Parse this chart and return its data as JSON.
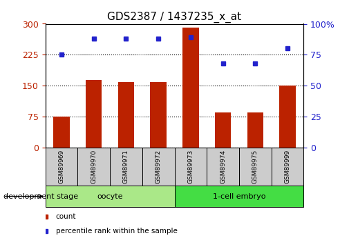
{
  "title": "GDS2387 / 1437235_x_at",
  "samples": [
    "GSM89969",
    "GSM89970",
    "GSM89971",
    "GSM89972",
    "GSM89973",
    "GSM89974",
    "GSM89975",
    "GSM89999"
  ],
  "counts": [
    75,
    163,
    158,
    158,
    290,
    85,
    85,
    150
  ],
  "percentiles": [
    75,
    88,
    88,
    88,
    89,
    68,
    68,
    80
  ],
  "bar_color": "#bb2200",
  "dot_color": "#2222cc",
  "ylim_left": [
    0,
    300
  ],
  "ylim_right": [
    0,
    100
  ],
  "yticks_left": [
    0,
    75,
    150,
    225,
    300
  ],
  "yticks_right": [
    0,
    25,
    50,
    75,
    100
  ],
  "groups": [
    {
      "label": "oocyte",
      "start": 0,
      "end": 4,
      "color": "#aae888"
    },
    {
      "label": "1-cell embryo",
      "start": 4,
      "end": 8,
      "color": "#44dd44"
    }
  ],
  "group_label": "development stage",
  "legend_items": [
    {
      "label": "count",
      "color": "#bb2200",
      "marker": "s"
    },
    {
      "label": "percentile rank within the sample",
      "color": "#2222cc",
      "marker": "s"
    }
  ],
  "background_color": "#ffffff",
  "title_fontsize": 11
}
